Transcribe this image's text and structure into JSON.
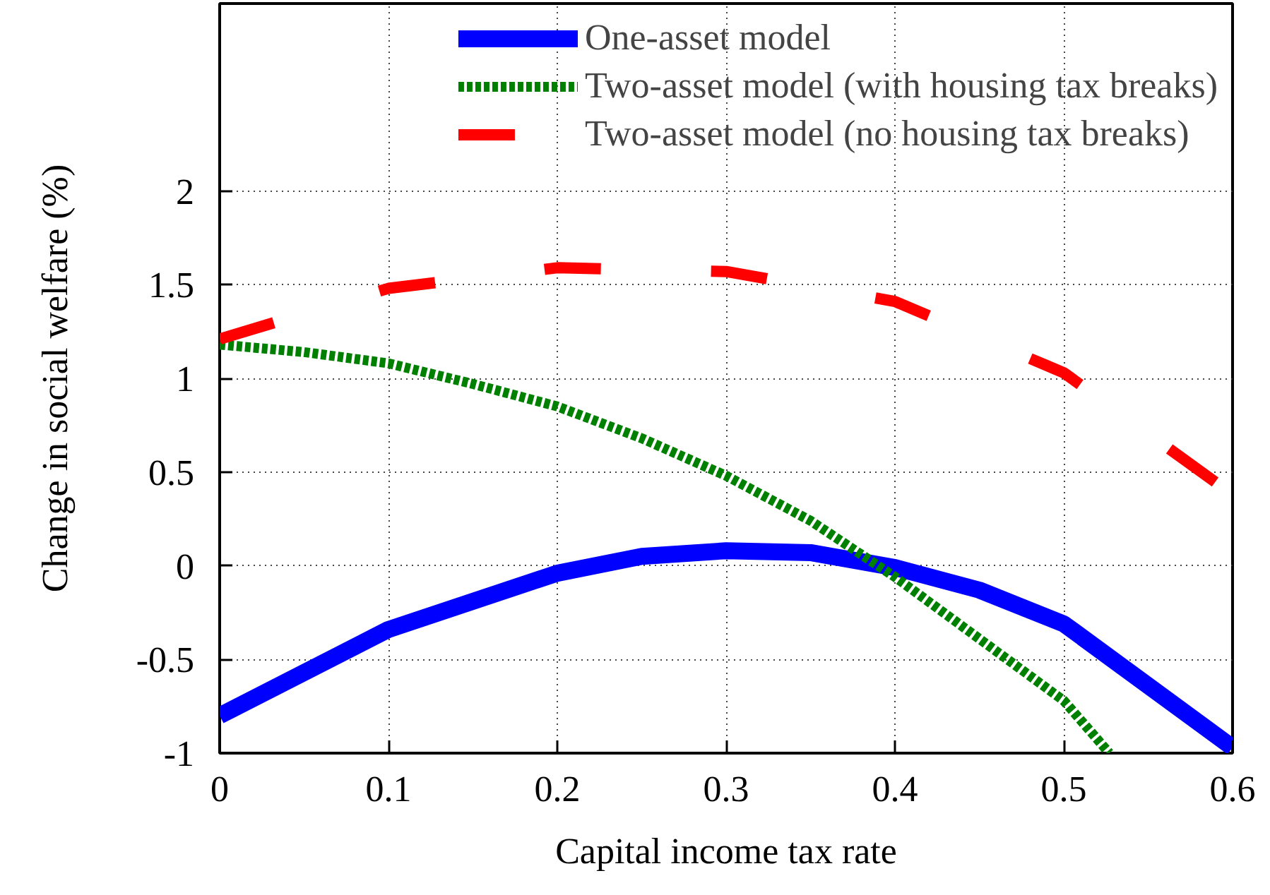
{
  "chart_data": {
    "type": "line",
    "xlabel": "Capital income tax rate",
    "ylabel": "Change in social welfare (%)",
    "xlim": [
      0,
      0.6
    ],
    "ylim": [
      -1,
      3
    ],
    "xticks": [
      0,
      0.1,
      0.2,
      0.3,
      0.4,
      0.5,
      0.6
    ],
    "yticks": [
      -1,
      -0.5,
      0,
      0.5,
      1,
      1.5,
      2
    ],
    "grid": true,
    "legend": "top right",
    "series": [
      {
        "name": "One-asset model",
        "color": "#0000ff",
        "line_style": "solid",
        "x": [
          0,
          0.1,
          0.2,
          0.25,
          0.3,
          0.35,
          0.4,
          0.45,
          0.5,
          0.6
        ],
        "values": [
          -0.8,
          -0.34,
          -0.04,
          0.05,
          0.08,
          0.07,
          -0.01,
          -0.13,
          -0.31,
          -0.97
        ]
      },
      {
        "name": "Two-asset model (with housing tax breaks)",
        "color": "#008000",
        "line_style": "dotted",
        "x": [
          0,
          0.05,
          0.1,
          0.15,
          0.2,
          0.25,
          0.3,
          0.35,
          0.4,
          0.45,
          0.5,
          0.527
        ],
        "values": [
          1.18,
          1.14,
          1.08,
          0.97,
          0.85,
          0.68,
          0.48,
          0.24,
          -0.06,
          -0.39,
          -0.72,
          -1
        ]
      },
      {
        "name": "Two-asset model (no housing tax breaks)",
        "color": "#ff0000",
        "line_style": "dashed",
        "x": [
          0,
          0.1,
          0.2,
          0.3,
          0.4,
          0.5,
          0.6
        ],
        "values": [
          1.21,
          1.48,
          1.59,
          1.57,
          1.41,
          1.03,
          0.38
        ]
      }
    ]
  }
}
